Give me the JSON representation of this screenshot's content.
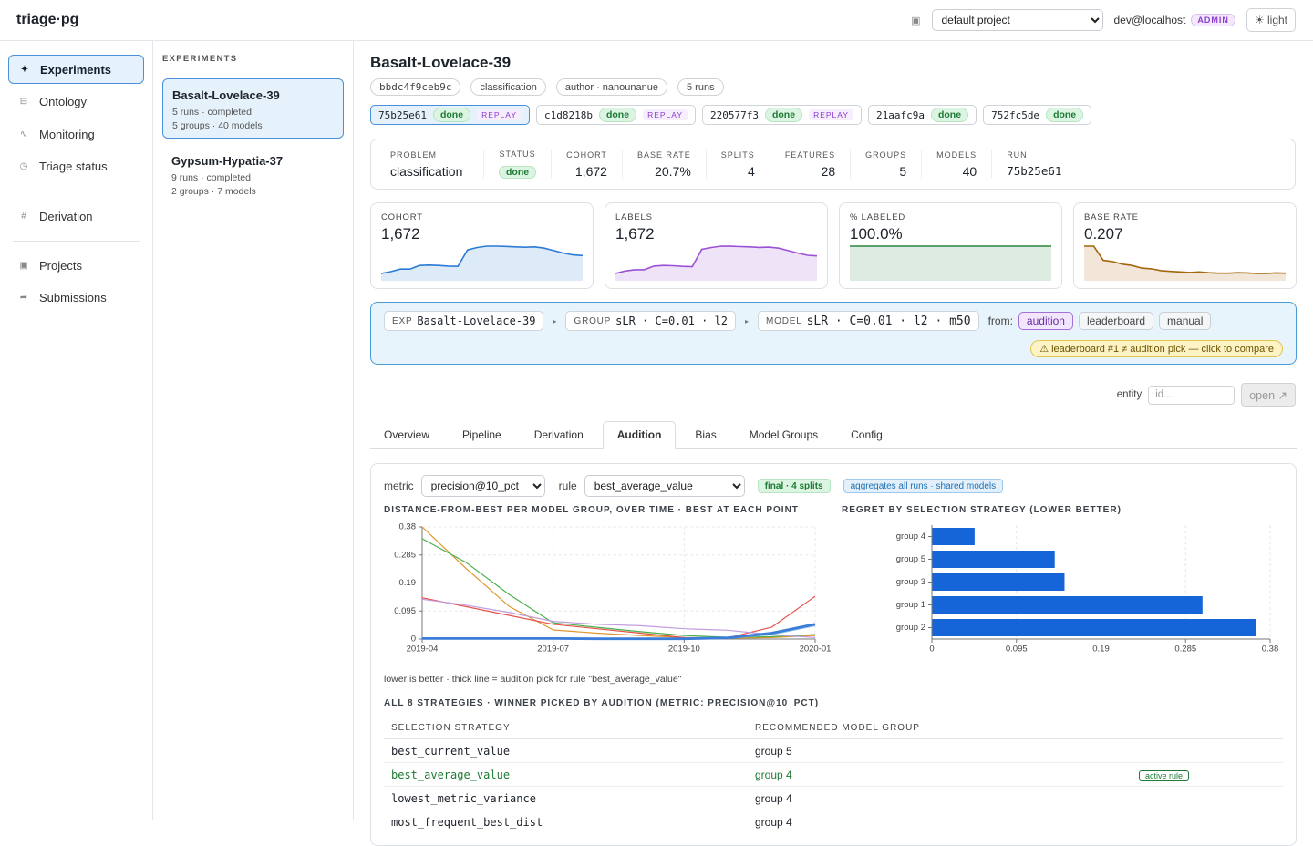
{
  "header": {
    "brand": "triage·pg",
    "project": "default project",
    "user": "dev@localhost",
    "role": "ADMIN",
    "theme": "light"
  },
  "nav": [
    "Experiments",
    "Ontology",
    "Monitoring",
    "Triage status",
    "Derivation",
    "Projects",
    "Submissions"
  ],
  "experiments": {
    "heading": "EXPERIMENTS",
    "items": [
      {
        "name": "Basalt-Lovelace-39",
        "runs": "5 runs · completed",
        "size": "5 groups · 40 models"
      },
      {
        "name": "Gypsum-Hypatia-37",
        "runs": "9 runs · completed",
        "size": "2 groups · 7 models"
      }
    ]
  },
  "experiment": {
    "title": "Basalt-Lovelace-39",
    "tags": [
      "bbdc4f9ceb9c",
      "classification",
      "author · nanounanue",
      "5 runs"
    ],
    "runs": [
      {
        "id": "75b25e61",
        "status": "done",
        "flag": "REPLAY"
      },
      {
        "id": "c1d8218b",
        "status": "done",
        "flag": "REPLAY"
      },
      {
        "id": "220577f3",
        "status": "done",
        "flag": "REPLAY"
      },
      {
        "id": "21aafc9a",
        "status": "done"
      },
      {
        "id": "752fc5de",
        "status": "done"
      }
    ]
  },
  "summary": [
    {
      "label": "PROBLEM",
      "value": "classification"
    },
    {
      "label": "STATUS",
      "value": "done"
    },
    {
      "label": "COHORT",
      "value": "1,672"
    },
    {
      "label": "BASE RATE",
      "value": "20.7%"
    },
    {
      "label": "SPLITS",
      "value": 4
    },
    {
      "label": "FEATURES",
      "value": 28
    },
    {
      "label": "GROUPS",
      "value": 5
    },
    {
      "label": "MODELS",
      "value": 40
    },
    {
      "label": "RUN",
      "value": "75b25e61"
    }
  ],
  "selection": {
    "exp_label": "EXP",
    "exp": "Basalt-Lovelace-39",
    "group_label": "GROUP",
    "group": "sLR · C=0.01 · l2",
    "model_label": "MODEL",
    "model": "sLR · C=0.01 · l2 · m50",
    "from": "from:",
    "sources": [
      "audition",
      "leaderboard",
      "manual"
    ],
    "warning": "⚠ leaderboard #1 ≠ audition pick — click to compare"
  },
  "entity": {
    "label": "entity",
    "placeholder": "id...",
    "button": "open ↗"
  },
  "tabs": [
    "Overview",
    "Pipeline",
    "Derivation",
    "Audition",
    "Bias",
    "Model Groups",
    "Config"
  ],
  "audition": {
    "metric_label": "metric",
    "metric": "precision@10_pct",
    "rule_label": "rule",
    "rule": "best_average_value",
    "badges": [
      "final · 4 splits",
      "aggregates all runs · shared models"
    ],
    "caption": "lower is better · thick line = audition pick for rule \"best_average_value\"",
    "table": {
      "title": "ALL 8 STRATEGIES · WINNER PICKED BY AUDITION (METRIC: PRECISION@10_PCT)",
      "columns": [
        "SELECTION STRATEGY",
        "RECOMMENDED MODEL GROUP"
      ],
      "rows": [
        {
          "strategy": "best_current_value",
          "group": "group 5"
        },
        {
          "strategy": "best_average_value",
          "group": "group 4",
          "badge": "active rule"
        },
        {
          "strategy": "lowest_metric_variance",
          "group": "group 4"
        },
        {
          "strategy": "most_frequent_best_dist",
          "group": "group 4"
        }
      ]
    }
  },
  "chart_data": [
    {
      "type": "area",
      "title": "COHORT",
      "headline": "1,672",
      "color": "#2b7bd4",
      "values": [
        1230,
        1260,
        1300,
        1300,
        1360,
        1365,
        1360,
        1350,
        1345,
        1610,
        1650,
        1672,
        1672,
        1668,
        1660,
        1655,
        1660,
        1640,
        1600,
        1560,
        1530,
        1520
      ]
    },
    {
      "type": "area",
      "title": "LABELS",
      "headline": "1,672",
      "color": "#9b51d6",
      "values": [
        1230,
        1270,
        1290,
        1290,
        1350,
        1360,
        1355,
        1345,
        1340,
        1620,
        1650,
        1672,
        1670,
        1665,
        1660,
        1652,
        1656,
        1640,
        1600,
        1560,
        1525,
        1515
      ]
    },
    {
      "type": "area",
      "title": "% LABELED",
      "headline": "100.0%",
      "color": "#2e8540",
      "values": [
        100,
        100,
        100,
        100,
        100,
        100,
        100,
        100,
        100,
        100,
        100,
        100
      ]
    },
    {
      "type": "area",
      "title": "BASE RATE",
      "headline": "0.207",
      "color": "#a5650c",
      "values": [
        0.31,
        0.31,
        0.255,
        0.25,
        0.24,
        0.235,
        0.225,
        0.222,
        0.215,
        0.212,
        0.21,
        0.208,
        0.21,
        0.207,
        0.205,
        0.205,
        0.207,
        0.206,
        0.204,
        0.204,
        0.206,
        0.205
      ]
    },
    {
      "type": "line",
      "title": "DISTANCE-FROM-BEST PER MODEL GROUP, OVER TIME · BEST AT EACH POINT",
      "x": [
        "2019-04",
        "2019-05",
        "2019-06",
        "2019-07",
        "2019-08",
        "2019-09",
        "2019-10",
        "2019-11",
        "2019-12",
        "2020-01"
      ],
      "xlim": [
        "2019-04",
        "2020-01"
      ],
      "xticks": [
        "2019-04",
        "2019-07",
        "2019-10",
        "2020-01"
      ],
      "ylim": [
        0,
        0.38
      ],
      "yticks": [
        0,
        0.095,
        0.19,
        0.285,
        0.38
      ],
      "grid": true,
      "series": [
        {
          "color": "#e0962c",
          "values": [
            0.38,
            0.24,
            0.11,
            0.031,
            0.02,
            0.012,
            0.005,
            0.003,
            0.005,
            0.012
          ]
        },
        {
          "color": "#4bb04f",
          "values": [
            0.34,
            0.26,
            0.15,
            0.055,
            0.04,
            0.025,
            0.012,
            0.006,
            0.008,
            0.015
          ]
        },
        {
          "color": "#e4534a",
          "values": [
            0.14,
            0.11,
            0.08,
            0.05,
            0.035,
            0.02,
            0.005,
            0.004,
            0.04,
            0.145
          ]
        },
        {
          "color": "#c09be0",
          "values": [
            0.135,
            0.115,
            0.09,
            0.06,
            0.05,
            0.045,
            0.035,
            0.03,
            0.015,
            0.005
          ]
        },
        {
          "color": "#8cc0ea",
          "values": [
            0.001,
            0.001,
            0.001,
            0.001,
            0.001,
            0.001,
            0.001,
            0.002,
            0.015,
            0.045
          ]
        },
        {
          "color": "#3b7dd8",
          "highlight": true,
          "values": [
            0.002,
            0.002,
            0.002,
            0.002,
            0.001,
            0.001,
            0.001,
            0.004,
            0.02,
            0.05
          ]
        }
      ]
    },
    {
      "type": "barh",
      "title": "REGRET BY SELECTION STRATEGY (LOWER BETTER)",
      "categories": [
        "group 4",
        "group 5",
        "group 3",
        "group 1",
        "group 2"
      ],
      "values": [
        0.048,
        0.138,
        0.149,
        0.304,
        0.364
      ],
      "color": "#1565d8",
      "xlim": [
        0,
        0.38
      ],
      "xticks": [
        0,
        0.095,
        0.19,
        0.285,
        0.38
      ],
      "grid": true
    }
  ]
}
